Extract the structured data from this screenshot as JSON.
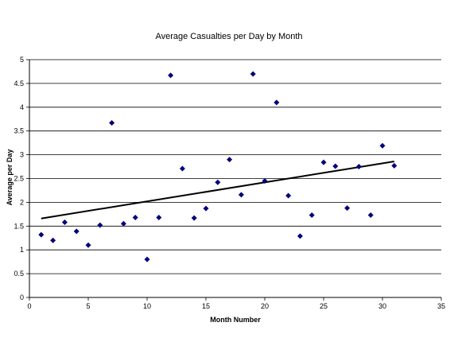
{
  "chart_data": {
    "type": "scatter",
    "title": "Average Casualties per Day by Month",
    "xlabel": "Month Number",
    "ylabel": "Average per Day",
    "xlim": [
      0,
      35
    ],
    "ylim": [
      0,
      5
    ],
    "x_ticks": [
      "0",
      "5",
      "10",
      "15",
      "20",
      "25",
      "30",
      "35"
    ],
    "y_ticks": [
      "0",
      "0.5",
      "1",
      "1.5",
      "2",
      "2.5",
      "3",
      "3.5",
      "4",
      "4.5",
      "5"
    ],
    "grid": "horizontal",
    "legend": "none",
    "series": [
      {
        "marker_color": "#00007a",
        "marker": "diamond",
        "points": [
          {
            "x": 1,
            "y": 1.32
          },
          {
            "x": 2,
            "y": 1.2
          },
          {
            "x": 3,
            "y": 1.58
          },
          {
            "x": 4,
            "y": 1.39
          },
          {
            "x": 5,
            "y": 1.1
          },
          {
            "x": 6,
            "y": 1.52
          },
          {
            "x": 7,
            "y": 3.67
          },
          {
            "x": 8,
            "y": 1.55
          },
          {
            "x": 9,
            "y": 1.68
          },
          {
            "x": 10,
            "y": 0.8
          },
          {
            "x": 11,
            "y": 1.68
          },
          {
            "x": 12,
            "y": 4.67
          },
          {
            "x": 13,
            "y": 2.71
          },
          {
            "x": 14,
            "y": 1.67
          },
          {
            "x": 15,
            "y": 1.87
          },
          {
            "x": 16,
            "y": 2.42
          },
          {
            "x": 17,
            "y": 2.9
          },
          {
            "x": 18,
            "y": 2.16
          },
          {
            "x": 19,
            "y": 4.7
          },
          {
            "x": 20,
            "y": 2.45
          },
          {
            "x": 21,
            "y": 4.1
          },
          {
            "x": 22,
            "y": 2.14
          },
          {
            "x": 23,
            "y": 1.29
          },
          {
            "x": 24,
            "y": 1.73
          },
          {
            "x": 25,
            "y": 2.84
          },
          {
            "x": 26,
            "y": 2.76
          },
          {
            "x": 27,
            "y": 1.88
          },
          {
            "x": 28,
            "y": 2.75
          },
          {
            "x": 29,
            "y": 1.73
          },
          {
            "x": 30,
            "y": 3.19
          },
          {
            "x": 31,
            "y": 2.77
          }
        ]
      }
    ],
    "trendline": {
      "type": "linear",
      "color": "#000000",
      "x": [
        1,
        31
      ],
      "y": [
        1.66,
        2.86
      ]
    }
  }
}
